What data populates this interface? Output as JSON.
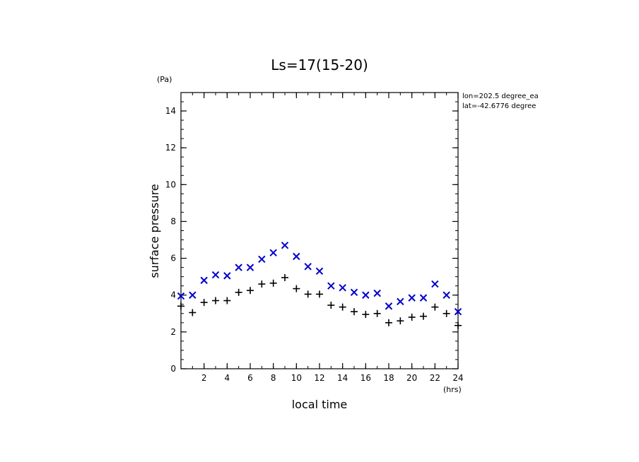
{
  "chart_data": {
    "type": "scatter",
    "title": "Ls=17(15-20)",
    "xlabel": "local time",
    "ylabel": "surface pressure",
    "x_unit": "(hrs)",
    "y_unit": "(Pa)",
    "xlim": [
      0,
      24
    ],
    "ylim": [
      0,
      15
    ],
    "x_ticks": [
      2,
      4,
      6,
      8,
      10,
      12,
      14,
      16,
      18,
      20,
      22,
      24
    ],
    "y_ticks": [
      0,
      2,
      4,
      6,
      8,
      10,
      12,
      14
    ],
    "annotations": [
      "lon=202.5 degree_ea",
      "lat=-42.6776 degree"
    ],
    "x": [
      0,
      1,
      2,
      3,
      4,
      5,
      6,
      7,
      8,
      9,
      10,
      11,
      12,
      13,
      14,
      15,
      16,
      17,
      18,
      19,
      20,
      21,
      22,
      23,
      24
    ],
    "series": [
      {
        "name": "series-plus",
        "marker": "+",
        "color": "#000000",
        "values": [
          3.4,
          3.05,
          3.6,
          3.7,
          3.7,
          4.15,
          4.25,
          4.6,
          4.65,
          4.95,
          4.35,
          4.05,
          4.05,
          3.45,
          3.35,
          3.1,
          2.95,
          3.0,
          2.5,
          2.6,
          2.8,
          2.85,
          3.35,
          3.0,
          2.35
        ]
      },
      {
        "name": "series-x",
        "marker": "x",
        "color": "#0000cc",
        "values": [
          3.95,
          4.0,
          4.8,
          5.1,
          5.05,
          5.5,
          5.5,
          5.95,
          6.3,
          6.7,
          6.1,
          5.55,
          5.3,
          4.5,
          4.4,
          4.15,
          4.0,
          4.1,
          3.4,
          3.65,
          3.85,
          3.85,
          4.6,
          4.0,
          3.1
        ]
      }
    ]
  }
}
